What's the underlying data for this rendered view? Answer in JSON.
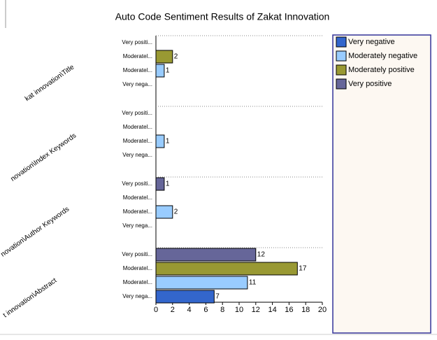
{
  "chart_data": {
    "type": "grouped_hbar",
    "title": "Auto Code Sentiment Results of Zakat Innovation",
    "groups": [
      "kat innovation\\Title",
      "novation\\Index Keywords",
      "novation\\Author Keywords",
      "t innovation\\Abstract"
    ],
    "row_labels": [
      "Very positi...",
      "Moderatel...",
      "Moderatel...",
      "Very nega..."
    ],
    "series": [
      {
        "name": "Very negative",
        "color": "#3366cc",
        "values": [
          null,
          null,
          null,
          7
        ]
      },
      {
        "name": "Moderately negative",
        "color": "#99ccff",
        "values": [
          1,
          1,
          2,
          11
        ]
      },
      {
        "name": "Moderately positive",
        "color": "#999933",
        "values": [
          2,
          null,
          null,
          17
        ]
      },
      {
        "name": "Very positive",
        "color": "#666699",
        "values": [
          null,
          null,
          1,
          12
        ]
      }
    ],
    "xlim": [
      0,
      20
    ],
    "xticks": [
      0,
      2,
      4,
      6,
      8,
      10,
      12,
      14,
      16,
      18,
      20
    ]
  }
}
